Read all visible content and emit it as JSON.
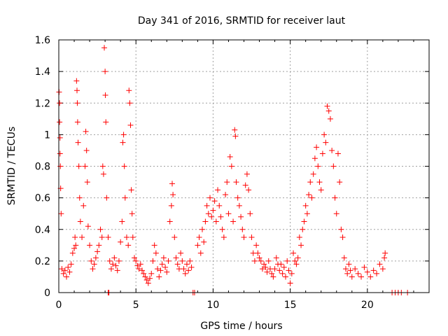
{
  "chart_data": {
    "type": "scatter",
    "title": "Day 341 of 2016, SRMTID for receiver laut",
    "xlabel": "GPS time / hours",
    "ylabel": "SRMTID / TECUs",
    "xlim": [
      0,
      24
    ],
    "ylim": [
      0,
      1.6
    ],
    "xticks": [
      0,
      5,
      10,
      15,
      20
    ],
    "xtick_labels": [
      "0",
      "5",
      "10",
      "15",
      "20"
    ],
    "yticks": [
      0,
      0.2,
      0.4,
      0.6,
      0.8,
      1,
      1.2,
      1.4,
      1.6
    ],
    "ytick_labels": [
      "0",
      "0.2",
      "0.4",
      "0.6",
      "0.8",
      "1",
      "1.2",
      "1.4",
      "1.6"
    ],
    "grid": true,
    "legend": "none",
    "marker": "+",
    "series": [
      {
        "name": "SRMTID",
        "color": "#ff0000",
        "points": [
          [
            0.02,
            1.27
          ],
          [
            0.05,
            1.2
          ],
          [
            0.08,
            0.98
          ],
          [
            0.1,
            0.8
          ],
          [
            0.12,
            0.66
          ],
          [
            0.15,
            0.5
          ],
          [
            0.05,
            1.08
          ],
          [
            0.08,
            0.88
          ],
          [
            0.2,
            0.15
          ],
          [
            0.3,
            0.12
          ],
          [
            0.4,
            0.14
          ],
          [
            0.5,
            0.1
          ],
          [
            0.6,
            0.16
          ],
          [
            0.7,
            0.13
          ],
          [
            0.8,
            0.18
          ],
          [
            0.9,
            0.25
          ],
          [
            1.0,
            0.28
          ],
          [
            1.05,
            0.35
          ],
          [
            1.1,
            0.3
          ],
          [
            1.15,
            1.34
          ],
          [
            1.18,
            1.28
          ],
          [
            1.2,
            1.2
          ],
          [
            1.22,
            1.08
          ],
          [
            1.25,
            0.95
          ],
          [
            1.3,
            0.8
          ],
          [
            1.35,
            0.6
          ],
          [
            1.4,
            0.45
          ],
          [
            1.5,
            0.35
          ],
          [
            1.6,
            0.55
          ],
          [
            1.7,
            0.8
          ],
          [
            1.75,
            1.02
          ],
          [
            1.8,
            0.9
          ],
          [
            1.85,
            0.7
          ],
          [
            1.9,
            0.42
          ],
          [
            2.0,
            0.3
          ],
          [
            2.1,
            0.2
          ],
          [
            2.2,
            0.15
          ],
          [
            2.3,
            0.18
          ],
          [
            2.4,
            0.22
          ],
          [
            2.5,
            0.26
          ],
          [
            2.6,
            0.3
          ],
          [
            2.7,
            0.4
          ],
          [
            2.8,
            0.35
          ],
          [
            2.85,
            0.8
          ],
          [
            2.9,
            0.75
          ],
          [
            2.95,
            1.55
          ],
          [
            3.0,
            1.4
          ],
          [
            3.02,
            1.25
          ],
          [
            3.05,
            1.08
          ],
          [
            3.1,
            0.6
          ],
          [
            3.2,
            0.35
          ],
          [
            3.3,
            0.2
          ],
          [
            3.4,
            0.15
          ],
          [
            3.5,
            0.18
          ],
          [
            3.6,
            0.22
          ],
          [
            3.7,
            0.17
          ],
          [
            3.8,
            0.14
          ],
          [
            3.9,
            0.2
          ],
          [
            4.0,
            0.32
          ],
          [
            4.1,
            0.45
          ],
          [
            4.15,
            0.95
          ],
          [
            4.2,
            1.0
          ],
          [
            4.25,
            0.8
          ],
          [
            4.3,
            0.6
          ],
          [
            4.4,
            0.35
          ],
          [
            4.5,
            0.3
          ],
          [
            4.55,
            1.28
          ],
          [
            4.6,
            1.2
          ],
          [
            4.65,
            1.06
          ],
          [
            4.7,
            0.65
          ],
          [
            4.75,
            0.5
          ],
          [
            4.8,
            0.35
          ],
          [
            4.9,
            0.22
          ],
          [
            5.0,
            0.2
          ],
          [
            5.1,
            0.17
          ],
          [
            5.2,
            0.15
          ],
          [
            5.3,
            0.18
          ],
          [
            5.4,
            0.14
          ],
          [
            5.5,
            0.12
          ],
          [
            5.6,
            0.1
          ],
          [
            5.7,
            0.08
          ],
          [
            5.8,
            0.06
          ],
          [
            5.9,
            0.09
          ],
          [
            6.0,
            0.12
          ],
          [
            6.1,
            0.2
          ],
          [
            6.2,
            0.3
          ],
          [
            6.3,
            0.25
          ],
          [
            6.4,
            0.15
          ],
          [
            6.5,
            0.1
          ],
          [
            6.6,
            0.14
          ],
          [
            6.7,
            0.18
          ],
          [
            6.8,
            0.22
          ],
          [
            6.9,
            0.16
          ],
          [
            7.0,
            0.13
          ],
          [
            7.1,
            0.2
          ],
          [
            7.2,
            0.45
          ],
          [
            7.3,
            0.55
          ],
          [
            7.35,
            0.69
          ],
          [
            7.4,
            0.62
          ],
          [
            7.5,
            0.35
          ],
          [
            7.6,
            0.22
          ],
          [
            7.7,
            0.18
          ],
          [
            7.8,
            0.15
          ],
          [
            7.9,
            0.25
          ],
          [
            8.0,
            0.2
          ],
          [
            8.1,
            0.15
          ],
          [
            8.2,
            0.12
          ],
          [
            8.3,
            0.18
          ],
          [
            8.4,
            0.14
          ],
          [
            8.5,
            0.2
          ],
          [
            8.6,
            0.16
          ],
          [
            9.0,
            0.3
          ],
          [
            9.1,
            0.35
          ],
          [
            9.2,
            0.25
          ],
          [
            9.3,
            0.4
          ],
          [
            9.4,
            0.32
          ],
          [
            9.5,
            0.45
          ],
          [
            9.6,
            0.55
          ],
          [
            9.7,
            0.5
          ],
          [
            9.8,
            0.6
          ],
          [
            9.9,
            0.48
          ],
          [
            10.0,
            0.52
          ],
          [
            10.1,
            0.58
          ],
          [
            10.2,
            0.45
          ],
          [
            10.3,
            0.65
          ],
          [
            10.4,
            0.55
          ],
          [
            10.5,
            0.48
          ],
          [
            10.6,
            0.4
          ],
          [
            10.7,
            0.35
          ],
          [
            10.8,
            0.62
          ],
          [
            10.9,
            0.7
          ],
          [
            11.0,
            0.5
          ],
          [
            11.1,
            0.86
          ],
          [
            11.2,
            0.8
          ],
          [
            11.3,
            0.45
          ],
          [
            11.4,
            1.03
          ],
          [
            11.45,
            0.99
          ],
          [
            11.5,
            0.7
          ],
          [
            11.6,
            0.6
          ],
          [
            11.7,
            0.55
          ],
          [
            11.8,
            0.48
          ],
          [
            11.9,
            0.4
          ],
          [
            12.0,
            0.35
          ],
          [
            12.1,
            0.68
          ],
          [
            12.2,
            0.75
          ],
          [
            12.3,
            0.65
          ],
          [
            12.4,
            0.5
          ],
          [
            12.5,
            0.35
          ],
          [
            12.6,
            0.25
          ],
          [
            12.7,
            0.2
          ],
          [
            12.8,
            0.3
          ],
          [
            12.9,
            0.25
          ],
          [
            13.0,
            0.22
          ],
          [
            13.1,
            0.2
          ],
          [
            13.2,
            0.15
          ],
          [
            13.3,
            0.18
          ],
          [
            13.4,
            0.16
          ],
          [
            13.5,
            0.13
          ],
          [
            13.6,
            0.2
          ],
          [
            13.7,
            0.15
          ],
          [
            13.8,
            0.12
          ],
          [
            13.9,
            0.1
          ],
          [
            14.0,
            0.15
          ],
          [
            14.1,
            0.22
          ],
          [
            14.2,
            0.18
          ],
          [
            14.3,
            0.14
          ],
          [
            14.4,
            0.18
          ],
          [
            14.5,
            0.12
          ],
          [
            14.6,
            0.16
          ],
          [
            14.7,
            0.1
          ],
          [
            14.8,
            0.2
          ],
          [
            14.9,
            0.14
          ],
          [
            15.0,
            0.06
          ],
          [
            15.1,
            0.12
          ],
          [
            15.2,
            0.25
          ],
          [
            15.3,
            0.2
          ],
          [
            15.4,
            0.18
          ],
          [
            15.5,
            0.22
          ],
          [
            15.6,
            0.35
          ],
          [
            15.7,
            0.3
          ],
          [
            15.8,
            0.4
          ],
          [
            15.9,
            0.45
          ],
          [
            16.0,
            0.55
          ],
          [
            16.1,
            0.5
          ],
          [
            16.2,
            0.62
          ],
          [
            16.3,
            0.7
          ],
          [
            16.4,
            0.6
          ],
          [
            16.5,
            0.75
          ],
          [
            16.6,
            0.85
          ],
          [
            16.7,
            0.92
          ],
          [
            16.8,
            0.8
          ],
          [
            16.9,
            0.7
          ],
          [
            17.0,
            0.65
          ],
          [
            17.1,
            0.88
          ],
          [
            17.2,
            1.0
          ],
          [
            17.3,
            0.95
          ],
          [
            17.4,
            1.18
          ],
          [
            17.5,
            1.15
          ],
          [
            17.6,
            1.1
          ],
          [
            17.7,
            0.9
          ],
          [
            17.8,
            0.8
          ],
          [
            17.9,
            0.6
          ],
          [
            18.0,
            0.5
          ],
          [
            18.1,
            0.88
          ],
          [
            18.2,
            0.7
          ],
          [
            18.3,
            0.4
          ],
          [
            18.4,
            0.35
          ],
          [
            18.5,
            0.22
          ],
          [
            18.6,
            0.15
          ],
          [
            18.7,
            0.12
          ],
          [
            18.8,
            0.18
          ],
          [
            18.9,
            0.14
          ],
          [
            19.0,
            0.1
          ],
          [
            19.2,
            0.15
          ],
          [
            19.4,
            0.12
          ],
          [
            19.6,
            0.1
          ],
          [
            19.8,
            0.16
          ],
          [
            20.0,
            0.13
          ],
          [
            20.2,
            0.1
          ],
          [
            20.4,
            0.14
          ],
          [
            20.6,
            0.12
          ],
          [
            20.8,
            0.18
          ],
          [
            21.0,
            0.15
          ],
          [
            21.1,
            0.22
          ],
          [
            21.15,
            0.25
          ],
          [
            3.2,
            0.0
          ],
          [
            3.25,
            0.0
          ],
          [
            8.7,
            0.0
          ],
          [
            8.8,
            0.0
          ],
          [
            21.6,
            0.0
          ],
          [
            21.8,
            0.0
          ],
          [
            22.0,
            0.0
          ],
          [
            22.2,
            0.0
          ],
          [
            22.6,
            0.0
          ]
        ]
      }
    ]
  }
}
